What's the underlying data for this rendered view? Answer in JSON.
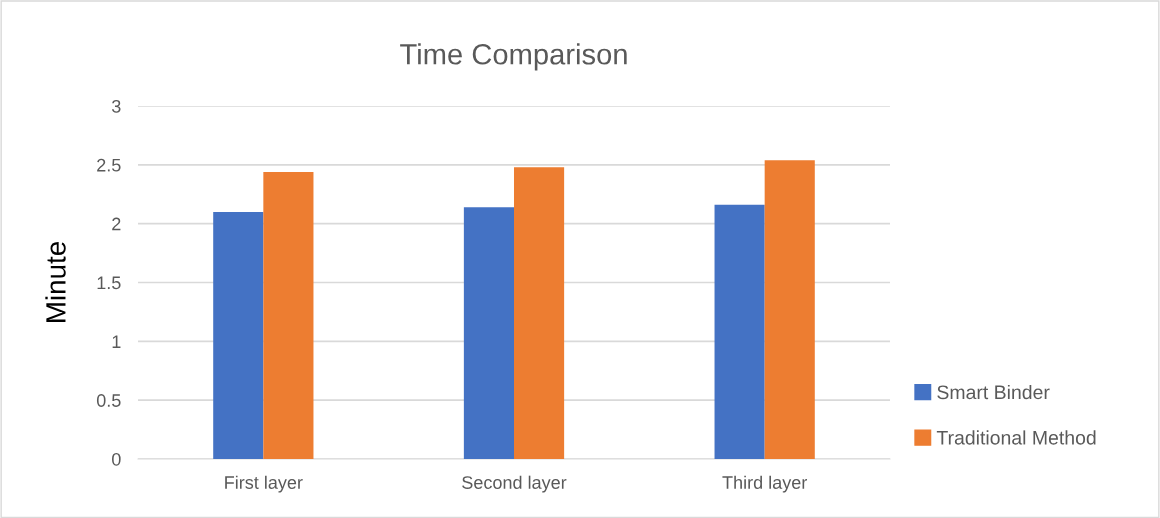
{
  "chart_data": {
    "type": "bar",
    "title": "Time Comparison",
    "ylabel": "Minute",
    "categories": [
      "First layer",
      "Second layer",
      "Third layer"
    ],
    "series": [
      {
        "name": "Smart Binder",
        "color": "#4472c4",
        "values": [
          2.1,
          2.14,
          2.16
        ]
      },
      {
        "name": "Traditional Method",
        "color": "#ed7d31",
        "values": [
          2.44,
          2.48,
          2.54
        ]
      }
    ],
    "ylim": [
      0,
      3
    ],
    "yticks": [
      0,
      0.5,
      1,
      1.5,
      2,
      2.5,
      3
    ],
    "grid": "y",
    "legend": "right"
  }
}
